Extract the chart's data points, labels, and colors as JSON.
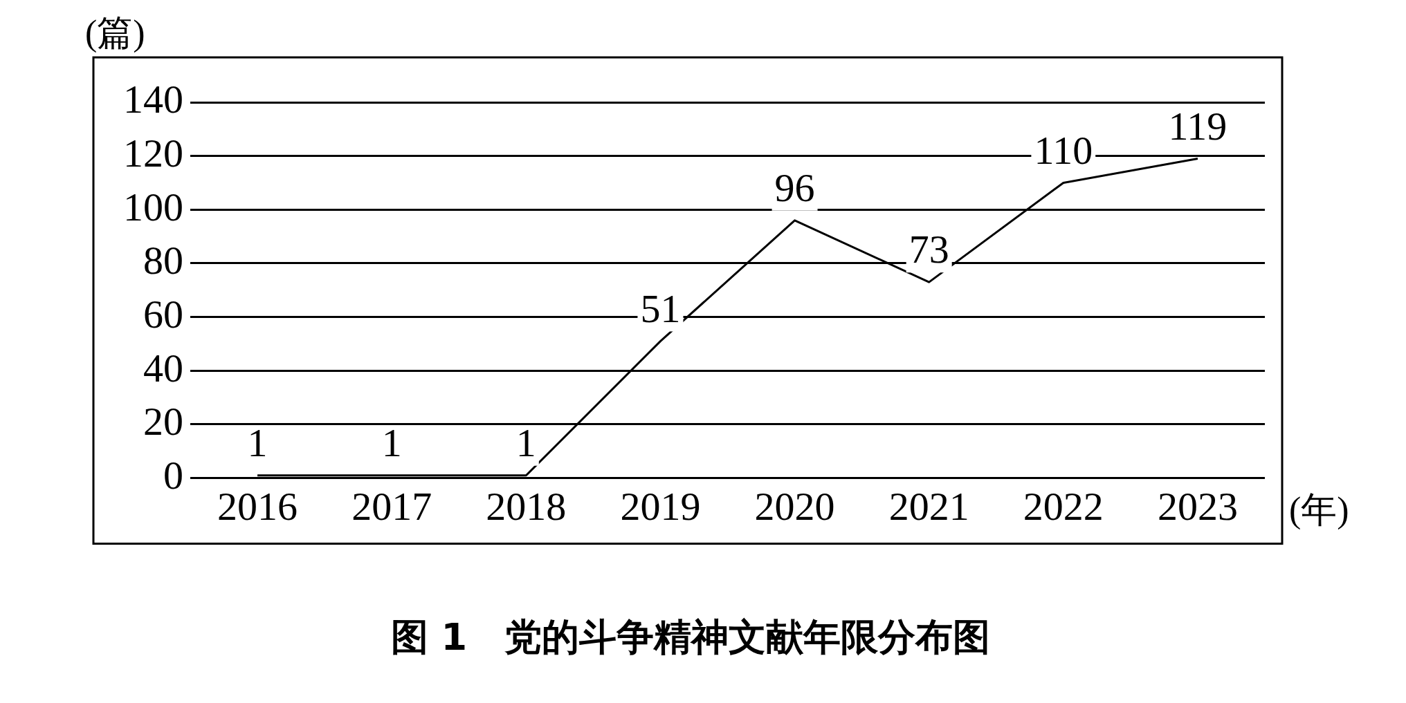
{
  "chart_data": {
    "type": "line",
    "title": "图 1　党的斗争精神文献年限分布图",
    "xlabel": "(年)",
    "ylabel": "(篇)",
    "categories": [
      "2016",
      "2017",
      "2018",
      "2019",
      "2020",
      "2021",
      "2022",
      "2023"
    ],
    "values": [
      1,
      1,
      1,
      51,
      96,
      73,
      110,
      119
    ],
    "color": "#000000",
    "ylim": [
      0,
      140
    ],
    "yticks": [
      0,
      20,
      40,
      60,
      80,
      100,
      120,
      140
    ],
    "grid": "y",
    "data_labels": true,
    "marker": "none",
    "line_style": "solid",
    "legend": false
  }
}
